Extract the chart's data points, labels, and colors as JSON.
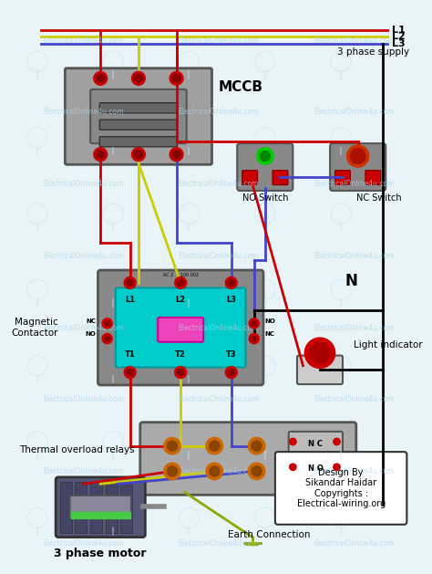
{
  "background_color": "#e8f4f8",
  "watermark_text": "ElectricalOnline4u.com",
  "watermark_color": "#b0d4e8",
  "title": "",
  "labels": {
    "L1": "L1",
    "L2": "L2",
    "L3": "L3",
    "phase_supply": "3 phase supply",
    "MCCB": "MCCB",
    "NO_switch": "NO Switch",
    "NC_switch": "NC Switch",
    "N": "N",
    "light_indicator": "Light indicator",
    "magnetic_contactor": "Magnetic\nContactor",
    "thermal_relay": "Thermal overload relays",
    "motor": "3 phase motor",
    "earth": "Earth Connection",
    "design": "Design By\nSikandar Haidar\nCopyrights :\nElectrical-wiring.org"
  },
  "wire_colors": {
    "L1": "#cc0000",
    "L2": "#cccc00",
    "L3": "#4444cc",
    "N": "#000000",
    "earth": "#cccc00"
  },
  "component_colors": {
    "mccb_body": "#a0a0a0",
    "mccb_top": "#888888",
    "contactor_body": "#00cccc",
    "contactor_frame": "#888888",
    "relay_body": "#999999",
    "switch_body": "#888888",
    "switch_red": "#cc0000",
    "button_green": "#00cc00",
    "button_red": "#cc0000",
    "indicator_red": "#cc0000",
    "terminal_red": "#cc0000"
  }
}
